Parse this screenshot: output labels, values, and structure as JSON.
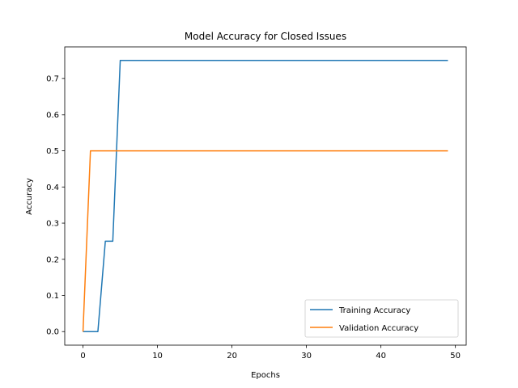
{
  "chart_data": {
    "type": "line",
    "title": "Model Accuracy for Closed Issues",
    "xlabel": "Epochs",
    "ylabel": "Accuracy",
    "xlim": [
      -2.45,
      51.45
    ],
    "ylim": [
      -0.0375,
      0.7875
    ],
    "xticks": [
      0,
      10,
      20,
      30,
      40,
      50
    ],
    "yticks": [
      0.0,
      0.1,
      0.2,
      0.3,
      0.4,
      0.5,
      0.6,
      0.7
    ],
    "ytick_labels": [
      "0.0",
      "0.1",
      "0.2",
      "0.3",
      "0.4",
      "0.5",
      "0.6",
      "0.7"
    ],
    "grid": false,
    "legend_position": "lower-right",
    "series": [
      {
        "name": "Training Accuracy",
        "color": "#1f77b4",
        "x": [
          0,
          1,
          2,
          3,
          4,
          5,
          6,
          7,
          8,
          9,
          10,
          11,
          12,
          13,
          14,
          15,
          16,
          17,
          18,
          19,
          20,
          21,
          22,
          23,
          24,
          25,
          26,
          27,
          28,
          29,
          30,
          31,
          32,
          33,
          34,
          35,
          36,
          37,
          38,
          39,
          40,
          41,
          42,
          43,
          44,
          45,
          46,
          47,
          48,
          49
        ],
        "values": [
          0.0,
          0.0,
          0.0,
          0.25,
          0.25,
          0.75,
          0.75,
          0.75,
          0.75,
          0.75,
          0.75,
          0.75,
          0.75,
          0.75,
          0.75,
          0.75,
          0.75,
          0.75,
          0.75,
          0.75,
          0.75,
          0.75,
          0.75,
          0.75,
          0.75,
          0.75,
          0.75,
          0.75,
          0.75,
          0.75,
          0.75,
          0.75,
          0.75,
          0.75,
          0.75,
          0.75,
          0.75,
          0.75,
          0.75,
          0.75,
          0.75,
          0.75,
          0.75,
          0.75,
          0.75,
          0.75,
          0.75,
          0.75,
          0.75,
          0.75
        ]
      },
      {
        "name": "Validation Accuracy",
        "color": "#ff7f0e",
        "x": [
          0,
          1,
          2,
          3,
          4,
          5,
          6,
          7,
          8,
          9,
          10,
          11,
          12,
          13,
          14,
          15,
          16,
          17,
          18,
          19,
          20,
          21,
          22,
          23,
          24,
          25,
          26,
          27,
          28,
          29,
          30,
          31,
          32,
          33,
          34,
          35,
          36,
          37,
          38,
          39,
          40,
          41,
          42,
          43,
          44,
          45,
          46,
          47,
          48,
          49
        ],
        "values": [
          0.0,
          0.5,
          0.5,
          0.5,
          0.5,
          0.5,
          0.5,
          0.5,
          0.5,
          0.5,
          0.5,
          0.5,
          0.5,
          0.5,
          0.5,
          0.5,
          0.5,
          0.5,
          0.5,
          0.5,
          0.5,
          0.5,
          0.5,
          0.5,
          0.5,
          0.5,
          0.5,
          0.5,
          0.5,
          0.5,
          0.5,
          0.5,
          0.5,
          0.5,
          0.5,
          0.5,
          0.5,
          0.5,
          0.5,
          0.5,
          0.5,
          0.5,
          0.5,
          0.5,
          0.5,
          0.5,
          0.5,
          0.5,
          0.5,
          0.5
        ]
      }
    ]
  }
}
